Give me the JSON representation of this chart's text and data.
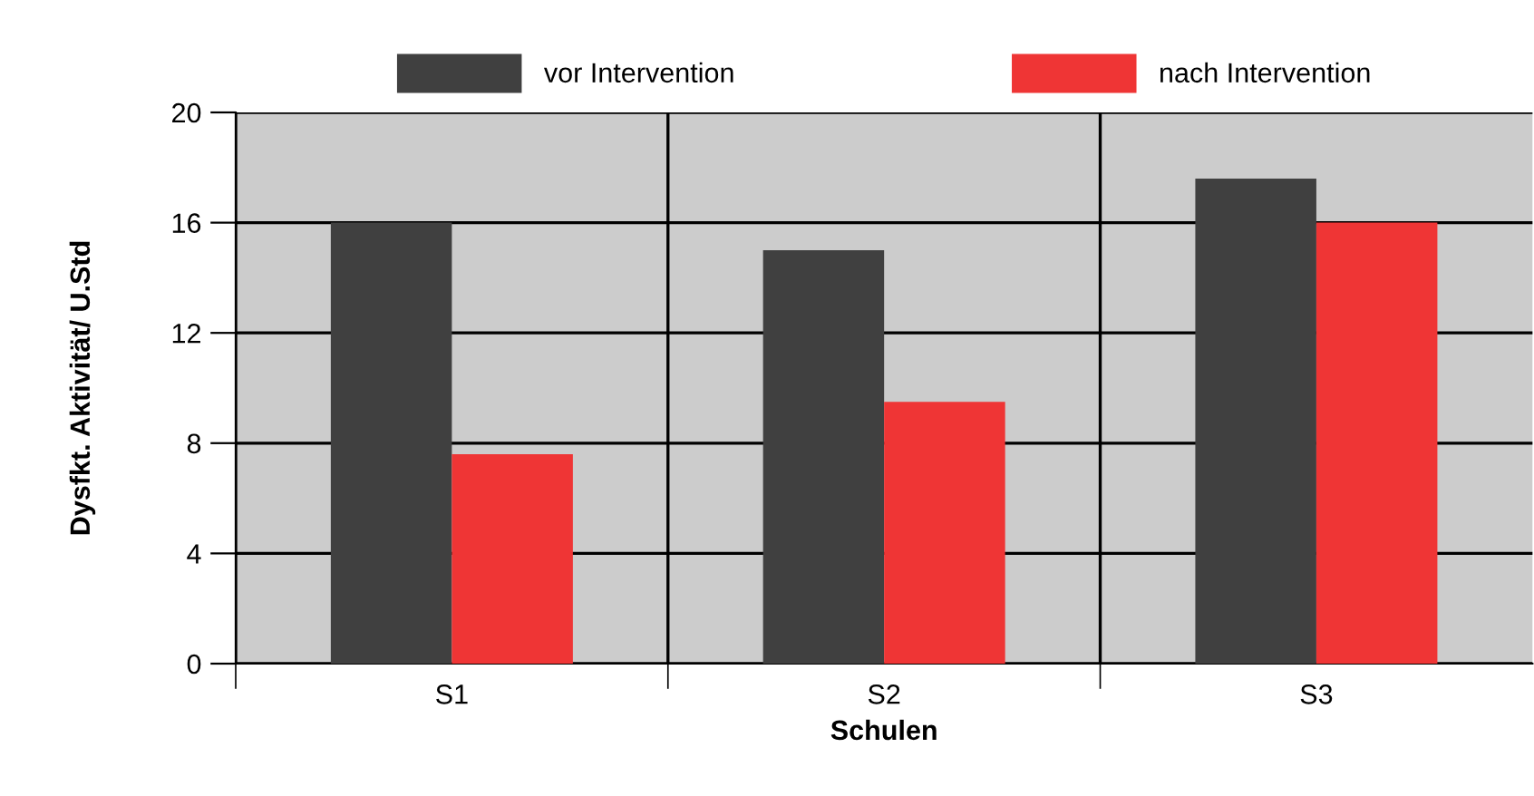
{
  "chart_data": {
    "type": "bar",
    "xlabel": "Schulen",
    "ylabel": "Dysfkt. Aktivität/ U.Std",
    "categories": [
      "S1",
      "S2",
      "S3"
    ],
    "series": [
      {
        "name": "vor Intervention",
        "color": "#404040",
        "values": [
          16,
          15,
          17.6
        ]
      },
      {
        "name": "nach Intervention",
        "color": "#ef3535",
        "values": [
          7.6,
          9.5,
          16
        ]
      }
    ],
    "ylim": [
      0,
      20
    ],
    "yticks": [
      0,
      4,
      8,
      12,
      16,
      20
    ],
    "grid": true,
    "legend": "top"
  }
}
